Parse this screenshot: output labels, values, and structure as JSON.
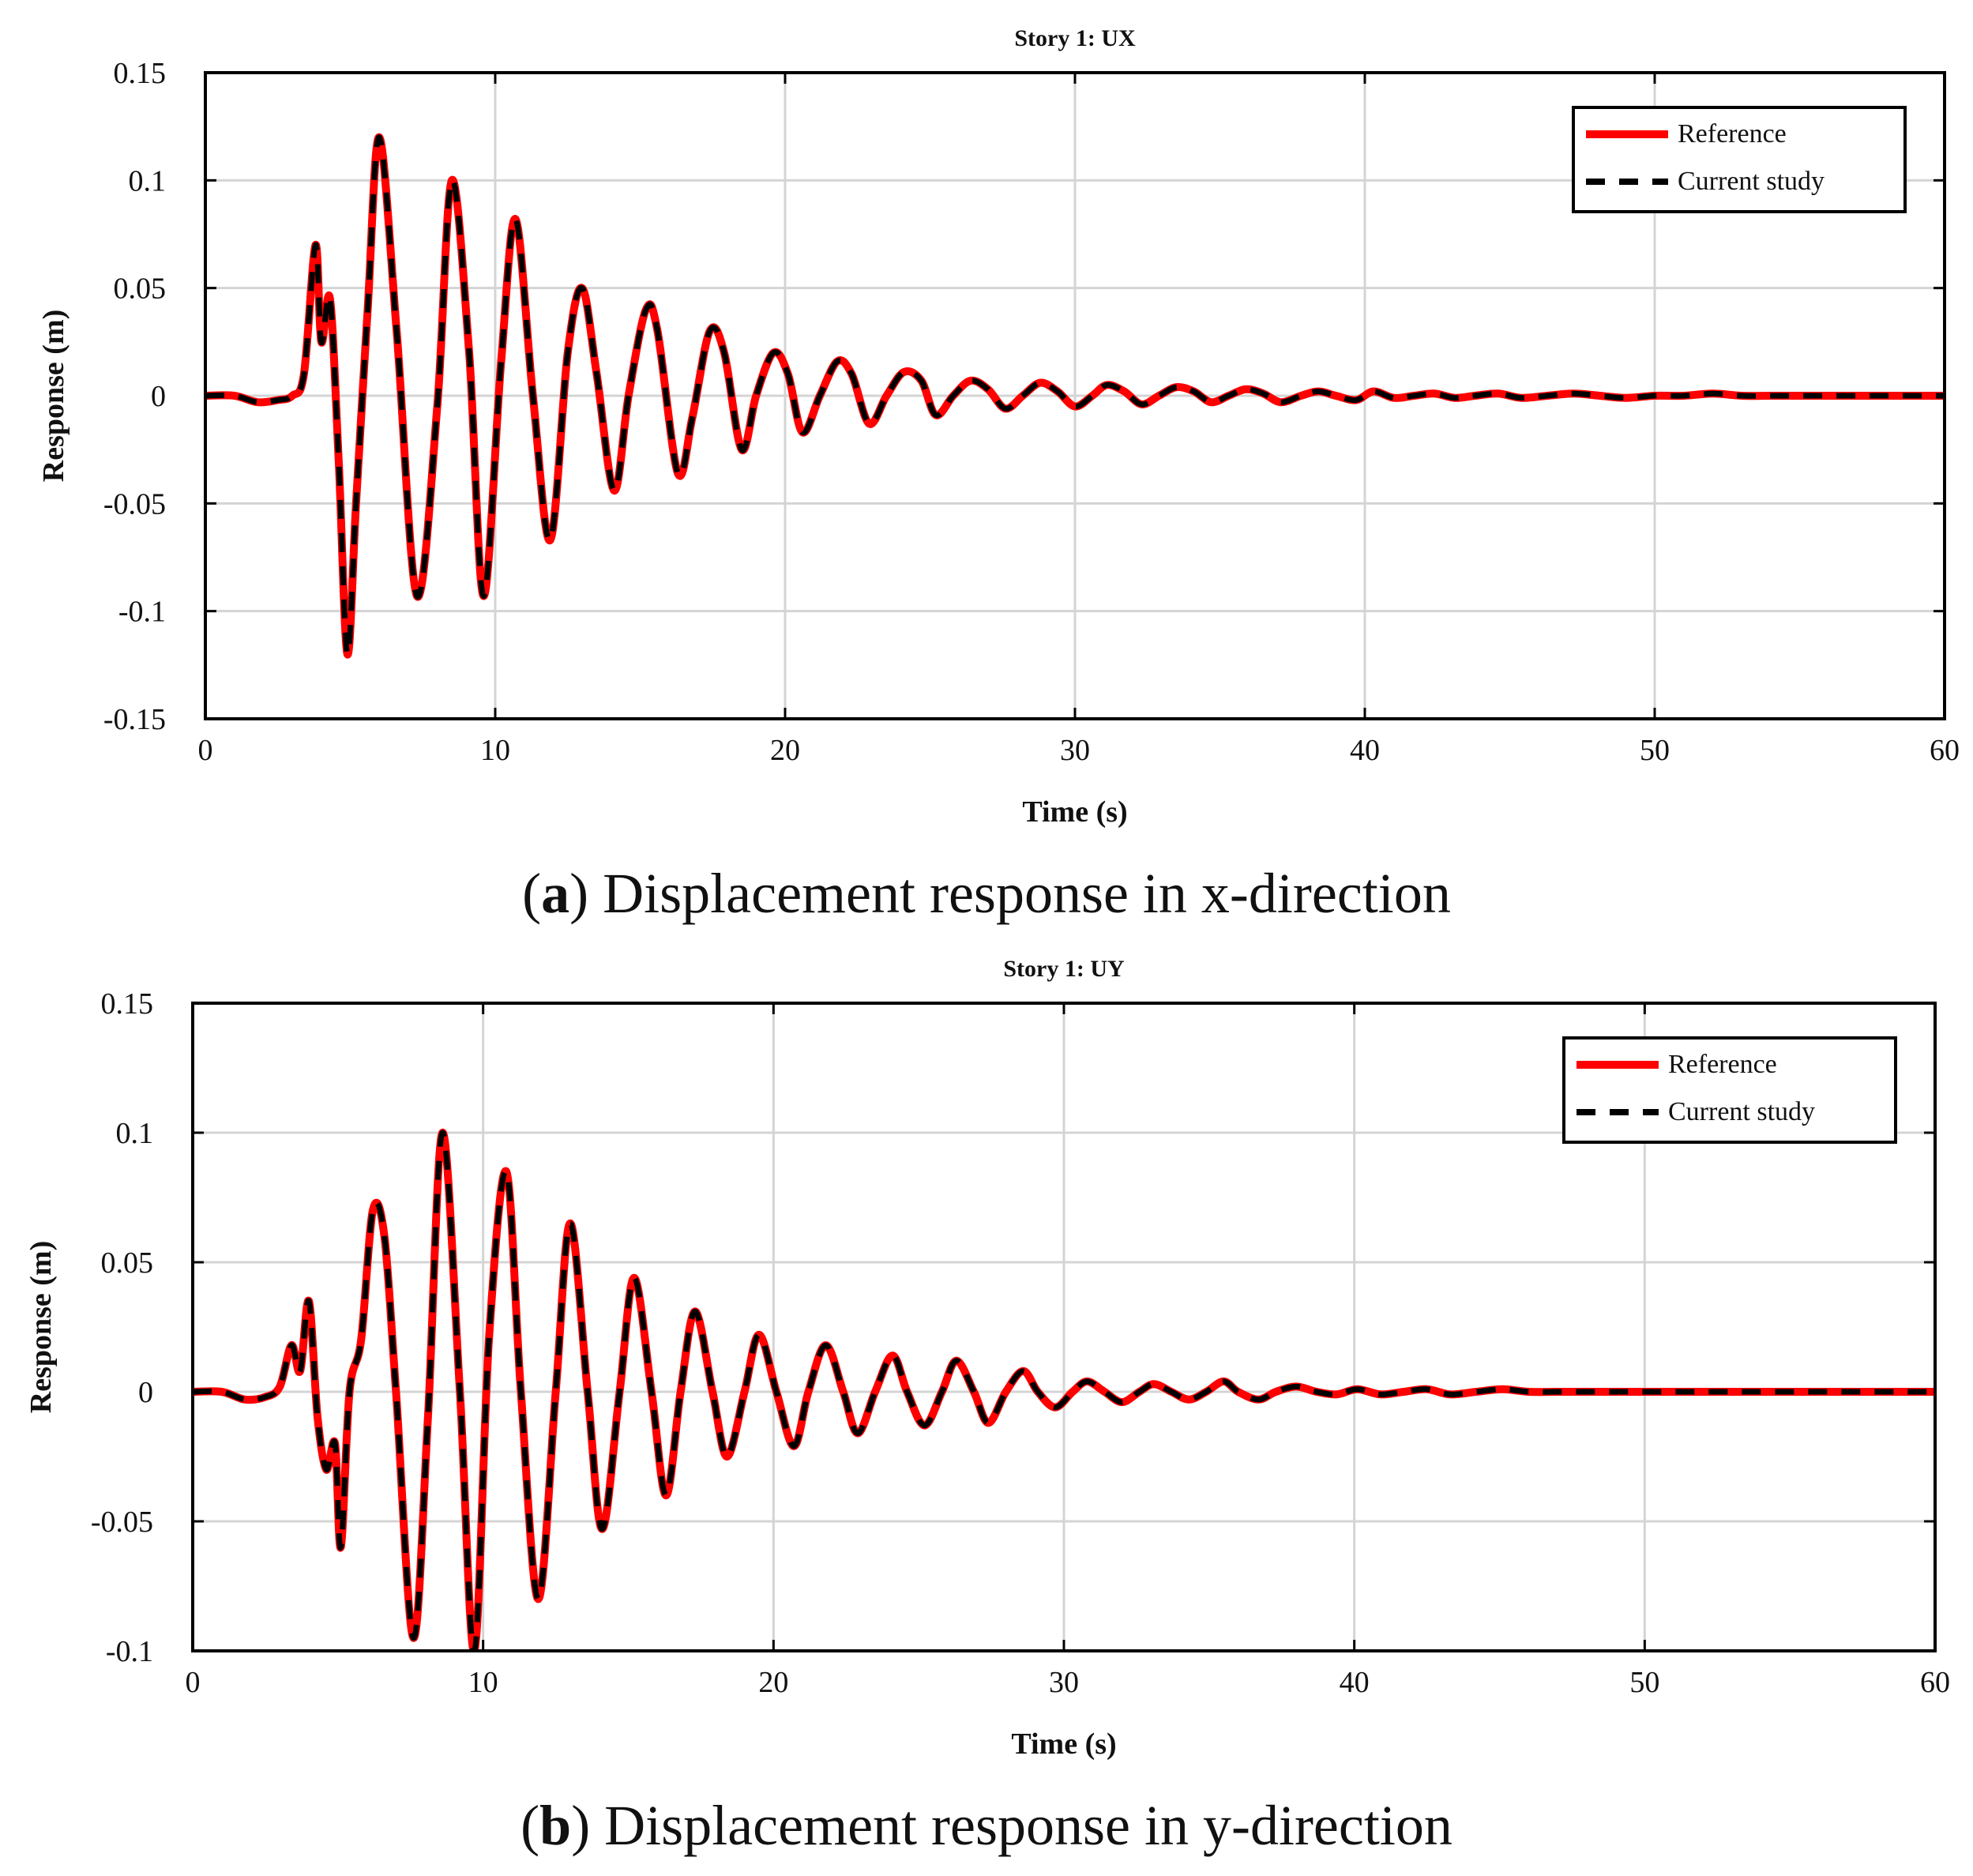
{
  "chart_data": [
    {
      "type": "line",
      "title": "Story 1: UX",
      "xlabel": "Time (s)",
      "ylabel": "Response (m)",
      "xlim": [
        0,
        60
      ],
      "ylim": [
        -0.15,
        0.15
      ],
      "xticks": [
        "0",
        "10",
        "20",
        "30",
        "40",
        "50",
        "60"
      ],
      "yticks": [
        "0.15",
        "0.1",
        "0.05",
        "0",
        "-0.05",
        "-0.1",
        "-0.15"
      ],
      "grid": true,
      "legend_position": "top-right",
      "series": [
        {
          "name": "Reference",
          "color": "#ff0000",
          "style": "solid"
        },
        {
          "name": "Current study",
          "color": "#000000",
          "style": "dashed"
        }
      ],
      "points": {
        "t": [
          0,
          1,
          1.8,
          2.5,
          3.0,
          3.4,
          3.8,
          4.0,
          4.3,
          4.6,
          4.9,
          5.2,
          5.6,
          6.0,
          6.6,
          7.3,
          8.0,
          8.5,
          9.1,
          9.6,
          10.2,
          10.7,
          11.3,
          11.9,
          12.5,
          13.0,
          13.5,
          14.1,
          14.6,
          15.2,
          15.6,
          16.3,
          16.8,
          17.4,
          17.9,
          18.5,
          19.0,
          19.6,
          20.1,
          20.6,
          21.2,
          21.8,
          22.3,
          22.9,
          23.5,
          24.1,
          24.7,
          25.2,
          25.8,
          26.4,
          27.0,
          27.6,
          28.2,
          28.8,
          29.4,
          30.0,
          30.6,
          31.1,
          31.7,
          32.3,
          32.9,
          33.5,
          34.1,
          34.7,
          35.3,
          35.9,
          36.5,
          37.1,
          37.8,
          38.4,
          39.0,
          39.7,
          40.3,
          41.0,
          41.7,
          42.4,
          43.1,
          43.8,
          44.6,
          45.4,
          46.3,
          47.2,
          48.1,
          49.0,
          50.0,
          51.0,
          52.0,
          53.0,
          54.0,
          55.0,
          56.0,
          57.0,
          58.0,
          59.0,
          60.0
        ],
        "y": [
          0,
          0,
          -0.003,
          -0.002,
          0,
          0.01,
          0.07,
          0.025,
          0.045,
          -0.03,
          -0.12,
          -0.05,
          0.04,
          0.12,
          0.03,
          -0.093,
          -0.005,
          0.1,
          0.02,
          -0.093,
          0.015,
          0.082,
          0.0,
          -0.067,
          0.02,
          0.05,
          0.01,
          -0.044,
          0.0,
          0.04,
          0.03,
          -0.036,
          -0.01,
          0.03,
          0.02,
          -0.025,
          0.0,
          0.02,
          0.01,
          -0.017,
          0.0,
          0.016,
          0.01,
          -0.013,
          0.0,
          0.011,
          0.007,
          -0.009,
          0.0,
          0.007,
          0.003,
          -0.006,
          0.0,
          0.006,
          0.002,
          -0.005,
          0.0,
          0.005,
          0.002,
          -0.004,
          0.0,
          0.004,
          0.002,
          -0.003,
          0.0,
          0.003,
          0.001,
          -0.003,
          0.0,
          0.002,
          0.0,
          -0.002,
          0.002,
          -0.001,
          0.0,
          0.001,
          -0.001,
          0.0,
          0.001,
          -0.001,
          0.0,
          0.001,
          0.0,
          -0.001,
          0.0,
          0.0,
          0.001,
          0.0,
          0.0,
          0.0,
          0.0,
          0.0,
          0.0,
          0.0,
          0.0
        ]
      }
    },
    {
      "type": "line",
      "title": "Story 1: UY",
      "xlabel": "Time (s)",
      "ylabel": "Response (m)",
      "xlim": [
        0,
        60
      ],
      "ylim": [
        -0.1,
        0.15
      ],
      "xticks": [
        "0",
        "10",
        "20",
        "30",
        "40",
        "50",
        "60"
      ],
      "yticks": [
        "0.15",
        "0.1",
        "0.05",
        "0",
        "-0.05",
        "-0.1"
      ],
      "grid": true,
      "legend_position": "top-right",
      "series": [
        {
          "name": "Reference",
          "color": "#ff0000",
          "style": "solid"
        },
        {
          "name": "Current study",
          "color": "#000000",
          "style": "dashed"
        }
      ],
      "points": {
        "t": [
          0,
          1,
          1.8,
          2.5,
          3.0,
          3.4,
          3.7,
          4.0,
          4.3,
          4.6,
          4.9,
          5.1,
          5.4,
          5.8,
          6.2,
          6.6,
          7.0,
          7.6,
          8.1,
          8.6,
          9.2,
          9.7,
          10.2,
          10.8,
          11.3,
          11.9,
          12.5,
          13.0,
          13.6,
          14.1,
          14.7,
          15.2,
          15.8,
          16.3,
          16.8,
          17.3,
          17.9,
          18.4,
          19.0,
          19.5,
          20.1,
          20.7,
          21.2,
          21.8,
          22.4,
          22.9,
          23.5,
          24.1,
          24.6,
          25.2,
          25.8,
          26.3,
          26.9,
          27.4,
          28.0,
          28.6,
          29.1,
          29.7,
          30.3,
          30.8,
          31.4,
          32.0,
          32.6,
          33.1,
          33.7,
          34.3,
          34.9,
          35.5,
          36.0,
          36.7,
          37.3,
          38.0,
          38.7,
          39.4,
          40.1,
          40.9,
          41.7,
          42.5,
          43.3,
          44.2,
          45.1,
          46.0,
          47.0,
          48.0,
          49.0,
          50.0,
          51.0,
          52.0,
          53.0,
          54.0,
          55.0,
          56.0,
          57.0,
          58.0,
          59.0,
          60.0
        ],
        "y": [
          0,
          0,
          -0.003,
          -0.002,
          0.002,
          0.018,
          0.008,
          0.035,
          -0.01,
          -0.03,
          -0.02,
          -0.06,
          0.0,
          0.02,
          0.07,
          0.06,
          0.0,
          -0.095,
          -0.01,
          0.1,
          0.0,
          -0.1,
          0.02,
          0.085,
          0.0,
          -0.08,
          0.0,
          0.065,
          0.0,
          -0.053,
          0.0,
          0.044,
          0.0,
          -0.04,
          0.0,
          0.031,
          0.0,
          -0.025,
          0.0,
          0.022,
          0.0,
          -0.021,
          0.0,
          0.018,
          0.0,
          -0.016,
          0.0,
          0.014,
          0.0,
          -0.013,
          0.0,
          0.012,
          0.0,
          -0.012,
          0.0,
          0.008,
          0.0,
          -0.006,
          0.0,
          0.004,
          0.0,
          -0.004,
          0.0,
          0.003,
          0.0,
          -0.003,
          0.0,
          0.004,
          0.0,
          -0.003,
          0.0,
          0.002,
          0.0,
          -0.001,
          0.001,
          -0.001,
          0.0,
          0.001,
          -0.001,
          0.0,
          0.001,
          0.0,
          0.0,
          0.0,
          0.0,
          0.0,
          0.0,
          0.0,
          0.0,
          0.0,
          0.0,
          0.0,
          0.0,
          0.0,
          0.0,
          0.0
        ]
      }
    }
  ],
  "captions": [
    {
      "label": "a",
      "text": "Displacement response in x-direction"
    },
    {
      "label": "b",
      "text": "Displacement response in y-direction"
    }
  ]
}
